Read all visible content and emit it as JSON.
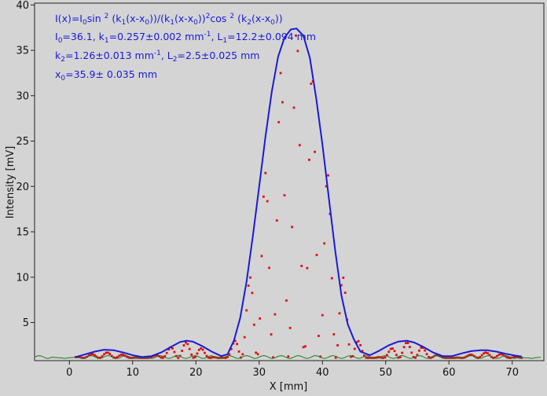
{
  "chart_data": {
    "type": "line",
    "xlabel": "X [mm]",
    "ylabel": "Intensity [mV]",
    "xlim": [
      -5.5,
      75
    ],
    "ylim": [
      0.8,
      40.2
    ],
    "x_ticks": [
      0,
      10,
      20,
      30,
      40,
      50,
      60,
      70
    ],
    "y_ticks": [
      5,
      10,
      15,
      20,
      25,
      30,
      35,
      40
    ],
    "grid": false,
    "legend": "none",
    "colors": {
      "fit": "#1a1ad6",
      "fine": "#e01010",
      "measured": "#1a7a1a",
      "annotation": "#1a1ad6",
      "background": "#d4d4d4"
    },
    "annotation": {
      "formula": {
        "t1": "I(x)=I",
        "t1s": "0",
        "t2": "sin ",
        "t2p": "2",
        "t3": " (k",
        "t3s": "1",
        "t4": "(x-x",
        "t4s": "0",
        "t5": "))/(k",
        "t5s": "1",
        "t6": "(x-x",
        "t6s": "0",
        "t7": "))",
        "t7p": "2",
        "t8": "cos ",
        "t8p": "2",
        "t9": " (k",
        "t9s": "2",
        "t10": "(x-x",
        "t10s": "0",
        "t11": "))"
      },
      "params1": {
        "a": "I",
        "as": "0",
        "b": "=36.1,  k",
        "bs": "1",
        "c": "=0.257±0.002 mm",
        "cp": "-1",
        "d": ",   L",
        "ds": "1",
        "e": "=12.2±0.094 mm"
      },
      "params2": {
        "a": "k",
        "as": "2",
        "b": "=1.26±0.013 mm",
        "bp": "-1",
        "c": ",   L",
        "cs": "2",
        "d": "=2.5±0.025 mm"
      },
      "params3": {
        "a": "x",
        "as": "0",
        "b": "=35.9±  0.035 mm"
      }
    },
    "series": [
      {
        "style": "line",
        "color": "#1a1ad6",
        "x": [
          1.0,
          2.5,
          4.0,
          5.5,
          7.0,
          8.5,
          10.0,
          11.5,
          13.0,
          14.5,
          16.0,
          17.5,
          18.5,
          19.5,
          21.0,
          22.5,
          24.0,
          25.0,
          26.0,
          27.0,
          28.0,
          29.0,
          30.0,
          31.0,
          32.0,
          33.0,
          34.0,
          35.0,
          35.9,
          37.0,
          38.0,
          39.0,
          40.0,
          41.0,
          42.0,
          43.0,
          44.0,
          45.0,
          46.0,
          47.5,
          49.0,
          50.5,
          52.0,
          53.3,
          54.5,
          56.0,
          57.5,
          59.0,
          60.5,
          62.0,
          63.5,
          65.0,
          66.0,
          67.5,
          69.0,
          70.5,
          71.5
        ],
        "y": [
          1.2,
          1.5,
          1.8,
          2.0,
          1.95,
          1.7,
          1.4,
          1.2,
          1.3,
          1.7,
          2.3,
          2.85,
          3.0,
          2.9,
          2.4,
          1.8,
          1.3,
          1.5,
          3.0,
          5.5,
          9.5,
          14.5,
          20.0,
          25.5,
          30.5,
          34.3,
          36.4,
          37.3,
          37.4,
          36.6,
          34.2,
          29.8,
          24.6,
          18.8,
          13.0,
          8.0,
          4.8,
          3.1,
          1.8,
          1.4,
          1.9,
          2.5,
          2.9,
          3.0,
          2.8,
          2.3,
          1.7,
          1.3,
          1.3,
          1.6,
          1.85,
          1.95,
          1.95,
          1.8,
          1.55,
          1.35,
          1.25
        ]
      }
    ]
  }
}
